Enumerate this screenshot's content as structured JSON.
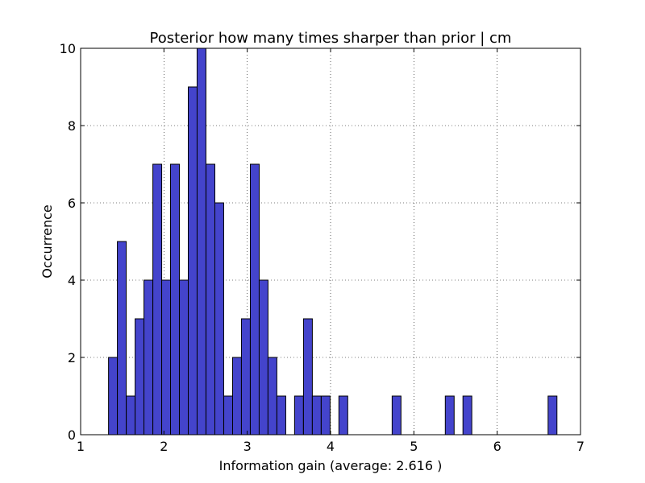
{
  "chart_data": {
    "type": "bar",
    "title": "Posterior how many times sharper than prior | cm",
    "xlabel": "Information gain (average: 2.616 )",
    "ylabel": "Occurrence",
    "xlim": [
      1,
      7
    ],
    "ylim": [
      0,
      10
    ],
    "xticks": [
      1,
      2,
      3,
      4,
      5,
      6,
      7
    ],
    "yticks": [
      0,
      2,
      4,
      6,
      8,
      10
    ],
    "grid": true,
    "bar_color": "#4444cc",
    "edge_color": "#000000",
    "bin_width": 0.1063,
    "bins": [
      {
        "x0": 1.335,
        "count": 2
      },
      {
        "x0": 1.441,
        "count": 5
      },
      {
        "x0": 1.548,
        "count": 1
      },
      {
        "x0": 1.654,
        "count": 3
      },
      {
        "x0": 1.76,
        "count": 4
      },
      {
        "x0": 1.867,
        "count": 7
      },
      {
        "x0": 1.973,
        "count": 4
      },
      {
        "x0": 2.079,
        "count": 7
      },
      {
        "x0": 2.186,
        "count": 4
      },
      {
        "x0": 2.292,
        "count": 9
      },
      {
        "x0": 2.398,
        "count": 10
      },
      {
        "x0": 2.505,
        "count": 7
      },
      {
        "x0": 2.611,
        "count": 6
      },
      {
        "x0": 2.718,
        "count": 1
      },
      {
        "x0": 2.824,
        "count": 2
      },
      {
        "x0": 2.93,
        "count": 3
      },
      {
        "x0": 3.037,
        "count": 7
      },
      {
        "x0": 3.143,
        "count": 4
      },
      {
        "x0": 3.249,
        "count": 2
      },
      {
        "x0": 3.356,
        "count": 1
      },
      {
        "x0": 3.568,
        "count": 1
      },
      {
        "x0": 3.675,
        "count": 3
      },
      {
        "x0": 3.781,
        "count": 1
      },
      {
        "x0": 3.888,
        "count": 1
      },
      {
        "x0": 4.1,
        "count": 1
      },
      {
        "x0": 4.739,
        "count": 1
      },
      {
        "x0": 5.377,
        "count": 1
      },
      {
        "x0": 5.589,
        "count": 1
      },
      {
        "x0": 6.611,
        "count": 1
      }
    ]
  }
}
